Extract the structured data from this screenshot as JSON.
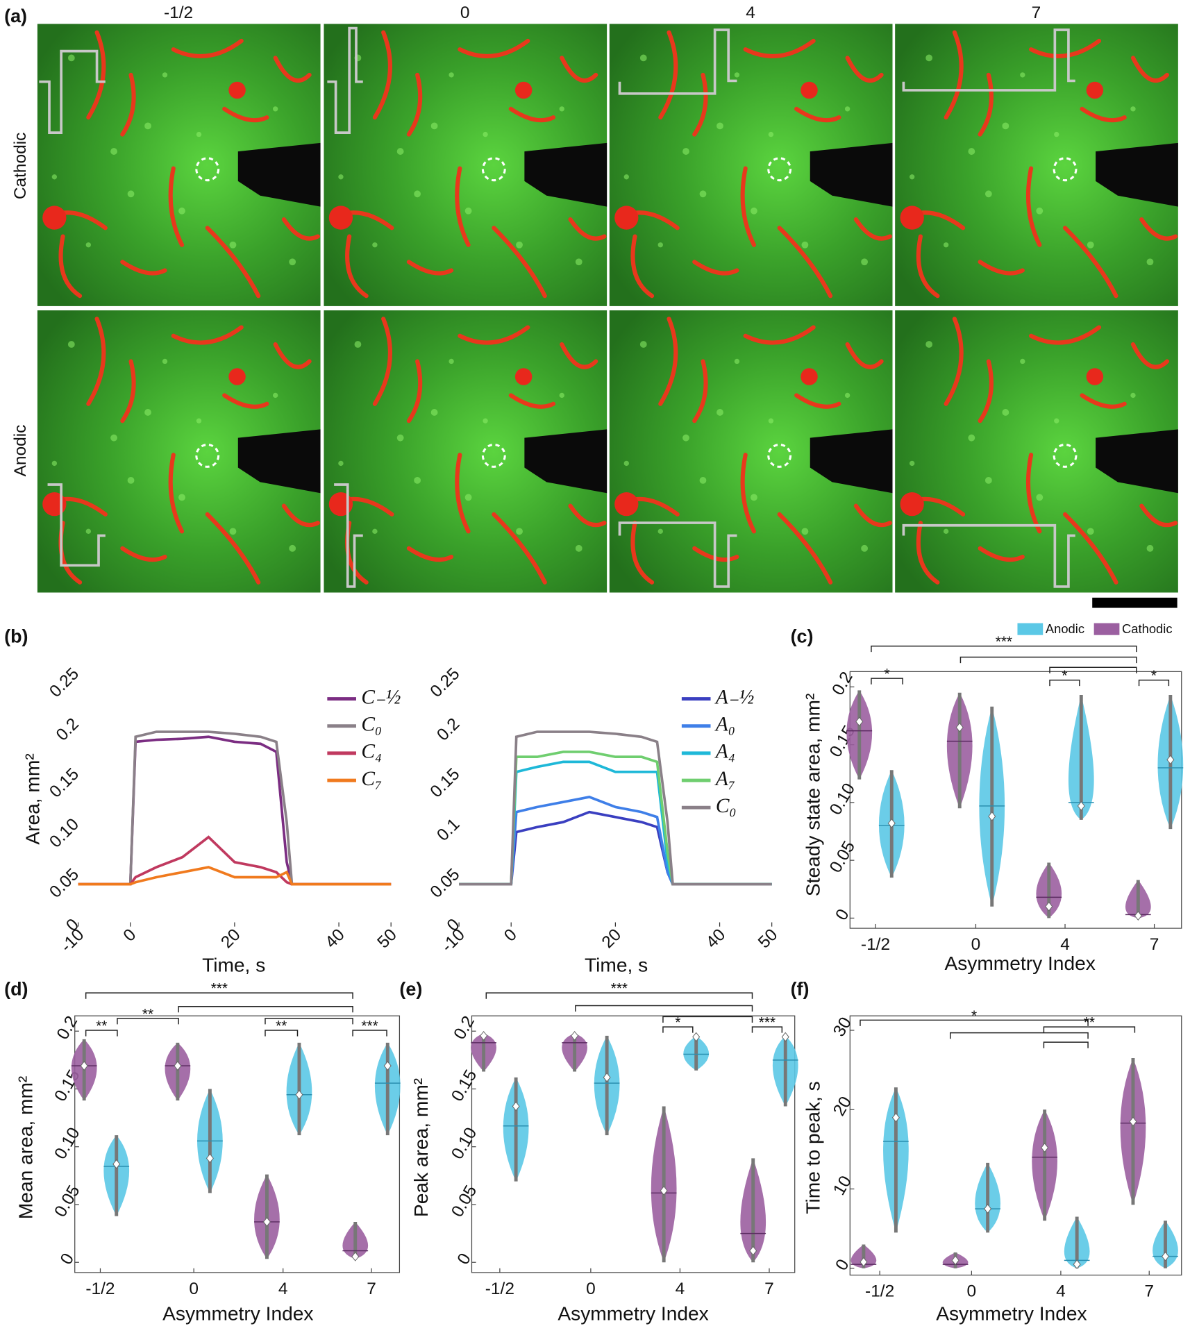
{
  "chart_data": [
    {
      "type": "image-grid",
      "label": "(a)",
      "columns": [
        "-1/2",
        "0",
        "4",
        "7"
      ],
      "rows": [
        "Cathodic",
        "Anodic"
      ]
    },
    {
      "type": "line",
      "label": "(b)",
      "xlabel": "Time, s",
      "ylabel": "Area, mm²",
      "x": [
        -10,
        0,
        1,
        5,
        10,
        15,
        20,
        25,
        28,
        30,
        31,
        50
      ],
      "xlim": [
        -10,
        50
      ],
      "xticks": [
        -10,
        0,
        20,
        40,
        50
      ],
      "ylim": [
        0,
        0.25
      ],
      "yticks": [
        0,
        0.05,
        {
          "value": 0.1,
          "label": "0.10"
        },
        0.15,
        0.2,
        0.25
      ],
      "series": [
        {
          "name": "C₋½",
          "color": "#7b2d82",
          "values": [
            0.038,
            0.038,
            0.18,
            0.182,
            0.183,
            0.185,
            0.18,
            0.178,
            0.17,
            0.06,
            0.038,
            0.038
          ]
        },
        {
          "name": "C₀",
          "color": "#8a8088",
          "values": [
            0.038,
            0.038,
            0.185,
            0.19,
            0.19,
            0.19,
            0.188,
            0.185,
            0.18,
            0.1,
            0.038,
            0.038
          ]
        },
        {
          "name": "C₄",
          "color": "#c0395f",
          "values": [
            0.038,
            0.038,
            0.045,
            0.055,
            0.065,
            0.085,
            0.06,
            0.055,
            0.05,
            0.04,
            0.038,
            0.038
          ]
        },
        {
          "name": "C₇",
          "color": "#f07a1e",
          "values": [
            0.038,
            0.038,
            0.04,
            0.045,
            0.05,
            0.055,
            0.045,
            0.045,
            0.045,
            0.05,
            0.038,
            0.038
          ]
        }
      ]
    },
    {
      "type": "line",
      "xlabel": "Time, s",
      "x": [
        -10,
        0,
        1,
        5,
        10,
        15,
        20,
        25,
        28,
        30,
        31,
        50
      ],
      "xlim": [
        -10,
        50
      ],
      "xticks": [
        -10,
        0,
        20,
        40,
        50
      ],
      "ylim": [
        0,
        0.25
      ],
      "yticks": [
        0,
        0.05,
        0.1,
        0.15,
        0.2,
        0.25
      ],
      "series": [
        {
          "name": "A₋½",
          "color": "#3a3fc0",
          "values": [
            0.038,
            0.038,
            0.09,
            0.095,
            0.1,
            0.11,
            0.105,
            0.1,
            0.095,
            0.05,
            0.038,
            0.038
          ]
        },
        {
          "name": "A₀",
          "color": "#3f7fe8",
          "values": [
            0.038,
            0.038,
            0.11,
            0.115,
            0.12,
            0.125,
            0.115,
            0.11,
            0.105,
            0.05,
            0.038,
            0.038
          ]
        },
        {
          "name": "A₄",
          "color": "#1eb8d8",
          "values": [
            0.038,
            0.038,
            0.15,
            0.155,
            0.16,
            0.16,
            0.15,
            0.15,
            0.15,
            0.06,
            0.038,
            0.038
          ]
        },
        {
          "name": "A₇",
          "color": "#6fce6f",
          "values": [
            0.038,
            0.038,
            0.165,
            0.165,
            0.17,
            0.17,
            0.165,
            0.165,
            0.16,
            0.07,
            0.038,
            0.038
          ]
        },
        {
          "name": "C₀",
          "color": "#8a8088",
          "values": [
            0.038,
            0.038,
            0.185,
            0.19,
            0.19,
            0.19,
            0.188,
            0.185,
            0.18,
            0.1,
            0.038,
            0.038
          ]
        }
      ]
    },
    {
      "type": "violin",
      "label": "(c)",
      "xlabel": "Asymmetry Index",
      "ylabel": "Steady state area, mm²",
      "legend": true,
      "categories": [
        "-1/2",
        "0",
        "4",
        "7"
      ],
      "ylim": [
        0,
        0.2
      ],
      "yticks": [
        0,
        0.05,
        {
          "value": 0.1,
          "label": "0.10"
        },
        0.15,
        0.2
      ],
      "significance": [
        "*",
        "***",
        "*",
        "*"
      ],
      "series": [
        {
          "name": "Anodic",
          "color": "#5bc8e6",
          "values": [
            0.08,
            0.097,
            0.1,
            0.13
          ],
          "min": [
            0.035,
            0.01,
            0.085,
            0.077
          ],
          "max": [
            0.128,
            0.183,
            0.193,
            0.193
          ],
          "mean": [
            0.082,
            0.088,
            0.097,
            0.137
          ]
        },
        {
          "name": "Cathodic",
          "color": "#9b5fa0",
          "values": [
            0.162,
            0.153,
            0.018,
            0.003
          ],
          "min": [
            0.12,
            0.095,
            0,
            0
          ],
          "max": [
            0.197,
            0.195,
            0.048,
            0.033
          ],
          "mean": [
            0.17,
            0.165,
            0.01,
            0.002
          ]
        }
      ]
    },
    {
      "type": "violin",
      "label": "(d)",
      "xlabel": "Asymmetry Index",
      "ylabel": "Mean area, mm²",
      "categories": [
        "-1/2",
        "0",
        "4",
        "7"
      ],
      "ylim": [
        0,
        0.2
      ],
      "yticks": [
        0,
        0.05,
        {
          "value": 0.1,
          "label": "0.10"
        },
        0.15,
        0.2
      ],
      "significance": [
        "**",
        "**",
        "***",
        "**",
        "***"
      ],
      "series": [
        {
          "color": "#5bc8e6",
          "values": [
            0.083,
            0.105,
            0.145,
            0.155
          ],
          "min": [
            0.04,
            0.06,
            0.11,
            0.11
          ],
          "max": [
            0.11,
            0.15,
            0.19,
            0.19
          ],
          "mean": [
            0.085,
            0.09,
            0.145,
            0.17
          ]
        },
        {
          "color": "#9b5fa0",
          "values": [
            0.17,
            0.17,
            0.035,
            0.01
          ],
          "min": [
            0.14,
            0.14,
            0.003,
            0.003
          ],
          "max": [
            0.193,
            0.19,
            0.076,
            0.035
          ],
          "mean": [
            0.17,
            0.17,
            0.035,
            0.005
          ]
        }
      ]
    },
    {
      "type": "violin",
      "label": "(e)",
      "xlabel": "Asymmetry Index",
      "ylabel": "Peak area, mm²",
      "categories": [
        "-1/2",
        "0",
        "4",
        "7"
      ],
      "ylim": [
        0,
        0.2
      ],
      "yticks": [
        0,
        0.05,
        {
          "value": 0.1,
          "label": "0.10"
        },
        0.15,
        0.2
      ],
      "significance": [
        "***",
        "*",
        "***"
      ],
      "series": [
        {
          "color": "#5bc8e6",
          "values": [
            0.118,
            0.155,
            0.18,
            0.175
          ],
          "min": [
            0.07,
            0.11,
            0.166,
            0.135
          ],
          "max": [
            0.16,
            0.196,
            0.196,
            0.196
          ],
          "mean": [
            0.135,
            0.16,
            0.195,
            0.195
          ]
        },
        {
          "color": "#9b5fa0",
          "values": [
            0.19,
            0.19,
            0.06,
            0.025
          ],
          "min": [
            0.165,
            0.165,
            0,
            0
          ],
          "max": [
            0.198,
            0.198,
            0.135,
            0.09
          ],
          "mean": [
            0.196,
            0.196,
            0.062,
            0.01
          ]
        }
      ]
    },
    {
      "type": "violin",
      "label": "(f)",
      "xlabel": "Asymmetry Index",
      "ylabel": "Time to peak, s",
      "categories": [
        "-1/2",
        "0",
        "4",
        "7"
      ],
      "ylim": [
        0,
        30
      ],
      "yticks": [
        0,
        10,
        20,
        30
      ],
      "significance": [
        "*",
        "**"
      ],
      "series": [
        {
          "color": "#5bc8e6",
          "values": [
            16,
            7.5,
            1,
            1.5
          ],
          "min": [
            4.5,
            4.5,
            0,
            0
          ],
          "max": [
            22.8,
            13.3,
            6.5,
            6
          ],
          "mean": [
            19,
            7.5,
            0.5,
            1.5
          ]
        },
        {
          "color": "#9b5fa0",
          "values": [
            0.5,
            0.5,
            14,
            18.3
          ],
          "min": [
            0,
            0,
            6,
            8
          ],
          "max": [
            3,
            2,
            20,
            26.5
          ],
          "mean": [
            0.8,
            1,
            15.2,
            18.5
          ]
        }
      ]
    }
  ]
}
